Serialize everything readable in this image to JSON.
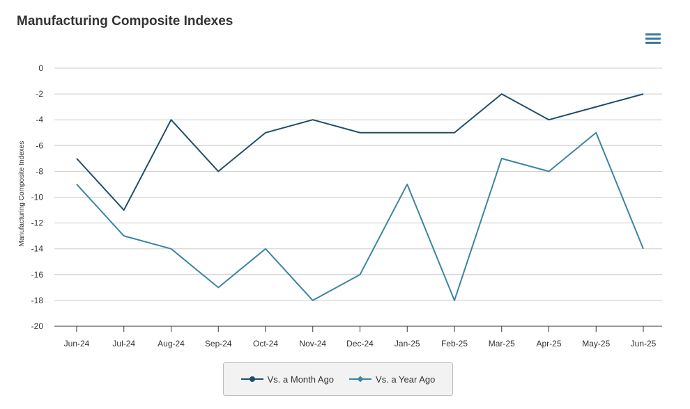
{
  "chart_data": {
    "type": "line",
    "title": "Manufacturing Composite Indexes",
    "ylabel": "Manufacturing Composite Indexes",
    "xlabel": "",
    "categories": [
      "Jun-24",
      "Jul-24",
      "Aug-24",
      "Sep-24",
      "Oct-24",
      "Nov-24",
      "Dec-24",
      "Jan-25",
      "Feb-25",
      "Mar-25",
      "Apr-25",
      "May-25",
      "Jun-25"
    ],
    "ylim": [
      -20,
      0
    ],
    "yticks": [
      0,
      -2,
      -4,
      -6,
      -8,
      -10,
      -12,
      -14,
      -16,
      -18,
      -20
    ],
    "grid": true,
    "legend_position": "bottom",
    "series": [
      {
        "name": "Vs. a Month Ago",
        "color": "#1f4e6b",
        "marker": "circle",
        "values": [
          -7,
          -11,
          -4,
          -8,
          -5,
          -4,
          -5,
          -5,
          -5,
          -2,
          -4,
          -3,
          -2
        ]
      },
      {
        "name": "Vs. a Year Ago",
        "color": "#3b84a3",
        "marker": "diamond",
        "values": [
          -9,
          -13,
          -14,
          -17,
          -14,
          -18,
          -16,
          -9,
          -18,
          -7,
          -8,
          -5,
          -14
        ]
      }
    ]
  },
  "toolbar": {
    "menu_icon": "hamburger-menu-icon"
  }
}
